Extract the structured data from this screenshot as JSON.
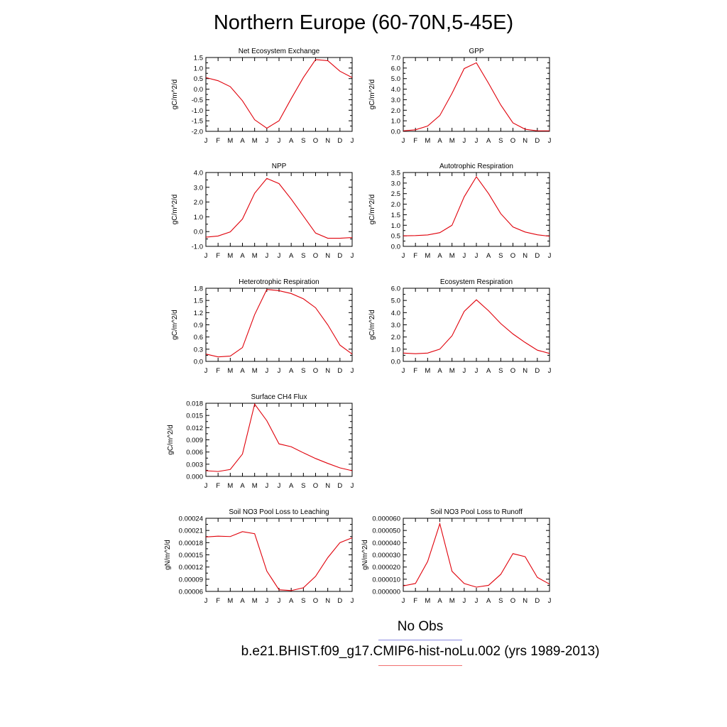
{
  "title": "Northern Europe (60-70N,5-45E)",
  "legend": {
    "obs_label": "No Obs",
    "obs_color": "#8a8ae0",
    "model_label": "b.e21.BHIST.f09_g17.CMIP6-hist-noLu.002 (yrs 1989-2013)",
    "model_color": "#e0000a"
  },
  "chart_data": [
    {
      "type": "line",
      "title": "Net Ecosystem Exchange",
      "ylabel": "gC/m^2/d",
      "x": [
        "J",
        "F",
        "M",
        "A",
        "M",
        "J",
        "J",
        "A",
        "S",
        "O",
        "N",
        "D",
        "J"
      ],
      "ylim": [
        -2.0,
        1.5
      ],
      "yticks": [
        "1.5",
        "1.0",
        "0.5",
        "0.0",
        "-0.5",
        "-1.0",
        "-1.5",
        "-2.0"
      ],
      "series": [
        {
          "color": "#e0000a",
          "values": [
            0.55,
            0.4,
            0.12,
            -0.55,
            -1.45,
            -1.85,
            -1.5,
            -0.45,
            0.55,
            1.4,
            1.35,
            0.85,
            0.55
          ]
        }
      ]
    },
    {
      "type": "line",
      "title": "GPP",
      "ylabel": "gC/m^2/d",
      "x": [
        "J",
        "F",
        "M",
        "A",
        "M",
        "J",
        "J",
        "A",
        "S",
        "O",
        "N",
        "D",
        "J"
      ],
      "ylim": [
        0.0,
        7.0
      ],
      "yticks": [
        "7.0",
        "6.0",
        "5.0",
        "4.0",
        "3.0",
        "2.0",
        "1.0",
        "0.0"
      ],
      "series": [
        {
          "color": "#e0000a",
          "values": [
            0.05,
            0.15,
            0.5,
            1.5,
            3.6,
            5.95,
            6.5,
            4.55,
            2.5,
            0.8,
            0.2,
            0.05,
            0.05
          ]
        }
      ]
    },
    {
      "type": "line",
      "title": "NPP",
      "ylabel": "gC/m^2/d",
      "x": [
        "J",
        "F",
        "M",
        "A",
        "M",
        "J",
        "J",
        "A",
        "S",
        "O",
        "N",
        "D",
        "J"
      ],
      "ylim": [
        -1.0,
        4.0
      ],
      "yticks": [
        "4.0",
        "3.0",
        "2.0",
        "1.0",
        "0.0",
        "-1.0"
      ],
      "series": [
        {
          "color": "#e0000a",
          "values": [
            -0.38,
            -0.3,
            -0.02,
            0.85,
            2.6,
            3.6,
            3.25,
            2.2,
            1.05,
            -0.1,
            -0.45,
            -0.45,
            -0.4
          ]
        }
      ]
    },
    {
      "type": "line",
      "title": "Autotrophic Respiration",
      "ylabel": "gC/m^2/d",
      "x": [
        "J",
        "F",
        "M",
        "A",
        "M",
        "J",
        "J",
        "A",
        "S",
        "O",
        "N",
        "D",
        "J"
      ],
      "ylim": [
        0.0,
        3.5
      ],
      "yticks": [
        "3.5",
        "3.0",
        "2.5",
        "2.0",
        "1.5",
        "1.0",
        "0.5",
        "0.0"
      ],
      "series": [
        {
          "color": "#e0000a",
          "values": [
            0.5,
            0.51,
            0.54,
            0.65,
            1.0,
            2.35,
            3.3,
            2.5,
            1.55,
            0.92,
            0.68,
            0.55,
            0.48
          ]
        }
      ]
    },
    {
      "type": "line",
      "title": "Heterotrophic Respiration",
      "ylabel": "gC/m^2/d",
      "x": [
        "J",
        "F",
        "M",
        "A",
        "M",
        "J",
        "J",
        "A",
        "S",
        "O",
        "N",
        "D",
        "J"
      ],
      "ylim": [
        0.0,
        1.8
      ],
      "yticks": [
        "1.8",
        "1.5",
        "1.2",
        "0.9",
        "0.6",
        "0.3",
        "0.0"
      ],
      "series": [
        {
          "color": "#e0000a",
          "values": [
            0.18,
            0.11,
            0.13,
            0.34,
            1.15,
            1.77,
            1.74,
            1.67,
            1.54,
            1.32,
            0.9,
            0.4,
            0.18
          ]
        }
      ]
    },
    {
      "type": "line",
      "title": "Ecosystem Respiration",
      "ylabel": "gC/m^2/d",
      "x": [
        "J",
        "F",
        "M",
        "A",
        "M",
        "J",
        "J",
        "A",
        "S",
        "O",
        "N",
        "D",
        "J"
      ],
      "ylim": [
        0.0,
        6.0
      ],
      "yticks": [
        "6.0",
        "5.0",
        "4.0",
        "3.0",
        "2.0",
        "1.0",
        "0.0"
      ],
      "series": [
        {
          "color": "#e0000a",
          "values": [
            0.68,
            0.63,
            0.68,
            1.0,
            2.1,
            4.1,
            5.05,
            4.15,
            3.1,
            2.25,
            1.55,
            0.92,
            0.65
          ]
        }
      ]
    },
    {
      "type": "line",
      "title": "Surface CH4 Flux",
      "ylabel": "gC/m^2/d",
      "x": [
        "J",
        "F",
        "M",
        "A",
        "M",
        "J",
        "J",
        "A",
        "S",
        "O",
        "N",
        "D",
        "J"
      ],
      "ylim": [
        0.0,
        0.018
      ],
      "yticks": [
        "0.018",
        "0.015",
        "0.012",
        "0.009",
        "0.006",
        "0.003",
        "0.000"
      ],
      "series": [
        {
          "color": "#e0000a",
          "values": [
            0.0014,
            0.0012,
            0.0017,
            0.0055,
            0.0178,
            0.0137,
            0.008,
            0.0073,
            0.0058,
            0.0044,
            0.0032,
            0.0021,
            0.0014
          ]
        }
      ]
    },
    {
      "type": "line",
      "title": "Soil NO3 Pool Loss to Leaching",
      "ylabel": "gN/m^2/d",
      "x": [
        "J",
        "F",
        "M",
        "A",
        "M",
        "J",
        "J",
        "A",
        "S",
        "O",
        "N",
        "D",
        "J"
      ],
      "ylim": [
        6e-05,
        0.00024
      ],
      "yticks": [
        "0.00024",
        "0.00021",
        "0.00018",
        "0.00015",
        "0.00012",
        "0.00009",
        "0.00006"
      ],
      "series": [
        {
          "color": "#e0000a",
          "values": [
            0.000194,
            0.000196,
            0.000195,
            0.000207,
            0.000202,
            0.00011,
            6.4e-05,
            6.2e-05,
            6.9e-05,
            9.7e-05,
            0.000143,
            0.00018,
            0.000192
          ]
        }
      ]
    },
    {
      "type": "line",
      "title": "Soil NO3 Pool Loss to Runoff",
      "ylabel": "gN/m^2/d",
      "x": [
        "J",
        "F",
        "M",
        "A",
        "M",
        "J",
        "J",
        "A",
        "S",
        "O",
        "N",
        "D",
        "J"
      ],
      "ylim": [
        0.0,
        6e-05
      ],
      "yticks": [
        "0.000060",
        "0.000050",
        "0.000040",
        "0.000030",
        "0.000020",
        "0.000010",
        "0.000000"
      ],
      "series": [
        {
          "color": "#e0000a",
          "values": [
            4.5e-06,
            6.5e-06,
            2.45e-05,
            5.55e-05,
            1.65e-05,
            6.5e-06,
            3.5e-06,
            5e-06,
            1.4e-05,
            3.1e-05,
            2.85e-05,
            1.15e-05,
            6e-06
          ]
        }
      ]
    }
  ]
}
